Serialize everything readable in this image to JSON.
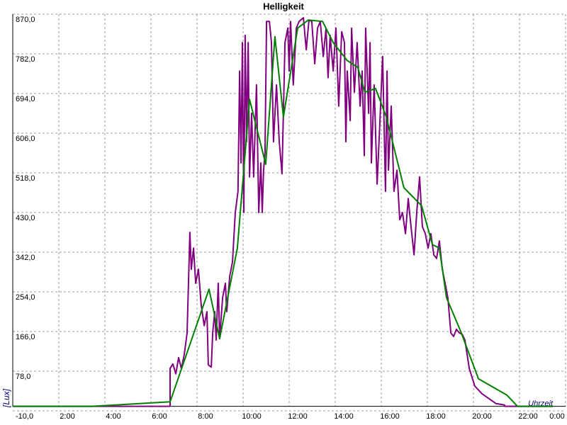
{
  "chart_data": {
    "type": "line",
    "title": "Helligkeit",
    "y_label": "[Lux]",
    "x_label": "Uhrzeit",
    "xlim": [
      0,
      24
    ],
    "ylim": [
      -10,
      870
    ],
    "grid": true,
    "xticks": [
      {
        "value": 2,
        "label": "2:00"
      },
      {
        "value": 4,
        "label": "4:00"
      },
      {
        "value": 6,
        "label": "6:00"
      },
      {
        "value": 8,
        "label": "8:00"
      },
      {
        "value": 10,
        "label": "10:00"
      },
      {
        "value": 12,
        "label": "12:00"
      },
      {
        "value": 14,
        "label": "14:00"
      },
      {
        "value": 16,
        "label": "16:00"
      },
      {
        "value": 18,
        "label": "18:00"
      },
      {
        "value": 20,
        "label": "20:00"
      },
      {
        "value": 22,
        "label": "22:00"
      },
      {
        "value": 24,
        "label": "0:00"
      }
    ],
    "yticks": [
      {
        "value": -10,
        "label": "-10,0"
      },
      {
        "value": 78,
        "label": "78,0"
      },
      {
        "value": 166,
        "label": "166,0"
      },
      {
        "value": 254,
        "label": "254,0"
      },
      {
        "value": 342,
        "label": "342,0"
      },
      {
        "value": 430,
        "label": "430,0"
      },
      {
        "value": 518,
        "label": "518,0"
      },
      {
        "value": 606,
        "label": "606,0"
      },
      {
        "value": 694,
        "label": "694,0"
      },
      {
        "value": 782,
        "label": "782,0"
      },
      {
        "value": 870,
        "label": "870,0"
      }
    ],
    "series": [
      {
        "color": "#800080",
        "x": [
          0,
          6.83,
          6.83,
          6.95,
          7.08,
          7.2,
          7.32,
          7.45,
          7.57,
          7.69,
          7.75,
          7.85,
          7.94,
          8.06,
          8.18,
          8.31,
          8.43,
          8.49,
          8.62,
          8.68,
          8.77,
          8.83,
          8.92,
          8.98,
          9.11,
          9.23,
          9.29,
          9.42,
          9.54,
          9.66,
          9.78,
          9.85,
          9.91,
          9.97,
          10.03,
          10.09,
          10.15,
          10.22,
          10.28,
          10.37,
          10.46,
          10.58,
          10.68,
          10.77,
          10.83,
          10.89,
          10.95,
          11.02,
          11.14,
          11.23,
          11.32,
          11.45,
          11.57,
          11.69,
          11.82,
          11.94,
          12.0,
          12.06,
          12.18,
          12.31,
          12.43,
          12.62,
          12.74,
          12.86,
          12.98,
          13.11,
          13.23,
          13.35,
          13.48,
          13.6,
          13.69,
          13.78,
          13.91,
          14.03,
          14.15,
          14.28,
          14.4,
          14.46,
          14.52,
          14.65,
          14.71,
          14.83,
          14.95,
          15.08,
          15.17,
          15.26,
          15.32,
          15.45,
          15.51,
          15.57,
          15.69,
          15.82,
          15.94,
          16.06,
          16.18,
          16.25,
          16.31,
          16.43,
          16.55,
          16.68,
          16.8,
          16.92,
          17.05,
          17.17,
          17.29,
          17.42,
          17.54,
          17.66,
          17.78,
          17.91,
          18.03,
          18.15,
          18.28,
          18.4,
          18.52,
          18.65,
          18.77,
          18.89,
          19.02,
          19.14,
          19.26,
          19.38,
          19.51,
          19.63,
          19.82,
          20.06,
          20.37,
          20.98,
          21.35,
          21.35,
          23.45
        ],
        "values": [
          0,
          0,
          84,
          94,
          72,
          108,
          84,
          116,
          163,
          386,
          304,
          351,
          273,
          304,
          226,
          179,
          210,
          92,
          87,
          163,
          210,
          147,
          273,
          150,
          241,
          273,
          210,
          289,
          320,
          430,
          477,
          744,
          540,
          807,
          430,
          823,
          587,
          807,
          509,
          650,
          509,
          713,
          430,
          540,
          430,
          524,
          564,
          854,
          854,
          807,
          587,
          713,
          587,
          516,
          807,
          839,
          744,
          854,
          713,
          839,
          854,
          862,
          791,
          857,
          854,
          760,
          839,
          854,
          776,
          839,
          729,
          823,
          744,
          839,
          666,
          831,
          807,
          587,
          744,
          634,
          839,
          697,
          807,
          666,
          744,
          556,
          839,
          650,
          807,
          540,
          713,
          493,
          634,
          776,
          477,
          744,
          524,
          666,
          477,
          524,
          414,
          430,
          383,
          461,
          399,
          336,
          430,
          509,
          399,
          383,
          351,
          383,
          336,
          328,
          367,
          304,
          273,
          241,
          163,
          155,
          171,
          163,
          160,
          147,
          84,
          45,
          28,
          6,
          3,
          0,
          0
        ]
      },
      {
        "color": "#008000",
        "x": [
          0,
          3.45,
          6.83,
          8.52,
          8.98,
          9.75,
          10.28,
          10.98,
          11.38,
          11.75,
          12.37,
          12.83,
          13.45,
          13.91,
          14.52,
          14.98,
          15.29,
          15.75,
          16.22,
          16.98,
          17.75,
          18.22,
          18.52,
          18.83,
          19.45,
          20.22,
          21.45,
          21.91,
          23.45
        ],
        "values": [
          0,
          0,
          10,
          260,
          150,
          351,
          681,
          537,
          820,
          642,
          839,
          857,
          854,
          807,
          767,
          752,
          697,
          705,
          642,
          485,
          445,
          359,
          351,
          241,
          166,
          61,
          25,
          0,
          0
        ]
      }
    ]
  }
}
